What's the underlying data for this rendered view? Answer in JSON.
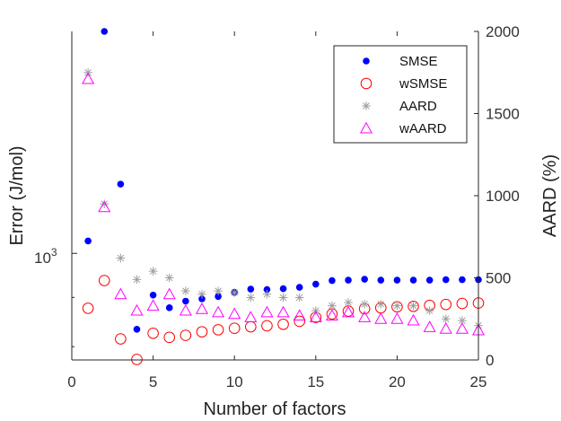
{
  "chart_data": {
    "type": "scatter",
    "title": "",
    "xlabel": "Number of factors",
    "ylabel_left": "Error (J/mol)",
    "ylabel_right": "AARD (%)",
    "x_ticks": [
      "0",
      "5",
      "10",
      "15",
      "20",
      "25"
    ],
    "y_left_tick": "10",
    "y_left_tick_exp": "3",
    "y_right_ticks": [
      "0",
      "500",
      "1000",
      "1500",
      "2000"
    ],
    "xlim": [
      0,
      25
    ],
    "ylim_left_log": [
      775,
      1700
    ],
    "ylim_right": [
      0,
      2000
    ],
    "y_left_scale": "log",
    "grid": false,
    "legend_position": "top-right",
    "series": [
      {
        "name": "SMSE",
        "axis": "left",
        "marker": "filled-circle",
        "color": "#0000ff",
        "x": [
          1,
          2,
          3,
          4,
          5,
          6,
          7,
          8,
          9,
          10,
          11,
          12,
          13,
          14,
          15,
          16,
          17,
          18,
          19,
          20,
          21,
          22,
          23,
          24,
          25
        ],
        "y": [
          1030,
          1700,
          1180,
          834,
          905,
          878,
          892,
          897,
          902,
          911,
          918,
          917,
          919,
          922,
          929,
          937,
          938,
          940,
          938,
          938,
          938,
          938,
          939,
          939,
          939
        ]
      },
      {
        "name": "wSMSE",
        "axis": "left",
        "marker": "open-circle",
        "color": "#ff0000",
        "x": [
          1,
          2,
          3,
          4,
          5,
          6,
          7,
          8,
          9,
          10,
          11,
          12,
          13,
          14,
          15,
          16,
          17,
          18,
          19,
          20,
          21,
          22,
          23,
          24,
          25
        ],
        "y": [
          877,
          937,
          815,
          776,
          826,
          818,
          822,
          829,
          833,
          836,
          839,
          841,
          844,
          850,
          858,
          865,
          871,
          876,
          878,
          880,
          881,
          883,
          885,
          887,
          888
        ]
      },
      {
        "name": "AARD",
        "axis": "right",
        "marker": "asterisk",
        "color": "#a0a0a0",
        "x": [
          1,
          2,
          3,
          4,
          5,
          6,
          7,
          8,
          9,
          10,
          11,
          12,
          13,
          14,
          15,
          16,
          17,
          18,
          19,
          20,
          21,
          22,
          23,
          24,
          25
        ],
        "y": [
          1750,
          950,
          620,
          490,
          540,
          500,
          420,
          400,
          420,
          410,
          380,
          400,
          380,
          380,
          300,
          330,
          350,
          340,
          340,
          330,
          330,
          300,
          250,
          240,
          210
        ]
      },
      {
        "name": "wAARD",
        "axis": "right",
        "marker": "open-triangle",
        "color": "#ff00ff",
        "x": [
          1,
          2,
          3,
          4,
          5,
          6,
          7,
          8,
          9,
          10,
          11,
          12,
          13,
          14,
          15,
          16,
          17,
          18,
          19,
          20,
          21,
          22,
          23,
          24,
          25
        ],
        "y": [
          1710,
          930,
          400,
          300,
          330,
          400,
          300,
          310,
          290,
          280,
          260,
          290,
          290,
          270,
          260,
          270,
          290,
          260,
          250,
          250,
          240,
          200,
          190,
          190,
          180
        ]
      }
    ]
  }
}
